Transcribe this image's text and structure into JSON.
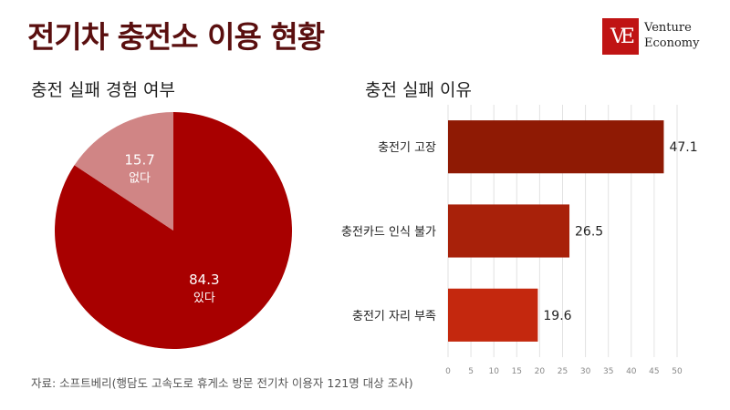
{
  "header": {
    "title": "전기차 충전소 이용 현황",
    "logo_mark": "VE",
    "logo_line1": "Venture",
    "logo_line2": "Economy"
  },
  "source": "자료: 소프트베리(행담도 고속도로 휴게소 방문 전기차 이용자 121명 대상 조사)",
  "chart_data": [
    {
      "type": "pie",
      "title": "충전 실패 경험 여부",
      "slices": [
        {
          "label": "있다",
          "value": 84.3,
          "color": "#a80000"
        },
        {
          "label": "없다",
          "value": 15.7,
          "color": "#d08585"
        }
      ]
    },
    {
      "type": "bar",
      "orientation": "horizontal",
      "title": "충전 실패 이유",
      "categories": [
        "충전기 고장",
        "충전카드 인식 불가",
        "충전기 자리 부족"
      ],
      "values": [
        47.1,
        26.5,
        19.6
      ],
      "colors": [
        "#8f1a04",
        "#a8210a",
        "#c4280e"
      ],
      "xlim": [
        0,
        50
      ],
      "xticks": [
        0,
        5,
        10,
        15,
        20,
        25,
        30,
        35,
        40,
        45,
        50
      ],
      "grid": true
    }
  ]
}
